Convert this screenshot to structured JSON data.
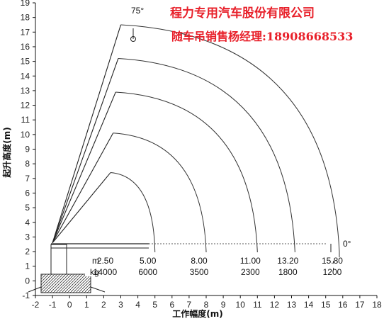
{
  "banner": {
    "company": "程力专用汽车股份有限公司",
    "contact": "随车吊销售杨经理:18908668533"
  },
  "chart_data": {
    "type": "load-chart",
    "xlabel": "工作幅度(m)",
    "ylabel": "起升高度(m)",
    "xlim": [
      -2,
      18
    ],
    "ylim": [
      -1,
      19
    ],
    "x_ticks": [
      -2,
      -1,
      0,
      1,
      2,
      3,
      4,
      5,
      6,
      7,
      8,
      9,
      10,
      11,
      12,
      13,
      14,
      15,
      16,
      17,
      18
    ],
    "y_ticks": [
      -1,
      0,
      1,
      2,
      3,
      4,
      5,
      6,
      7,
      8,
      9,
      10,
      11,
      12,
      13,
      14,
      15,
      16,
      17,
      18,
      19
    ],
    "angle_max_label": "75°",
    "angle_min_label": "0°",
    "table": {
      "radius_unit": "m",
      "load_unit": "kg",
      "radius": [
        "2.50",
        "5.00",
        "8.00",
        "11.00",
        "13.20",
        "15.80"
      ],
      "load": [
        "14000",
        "6000",
        "3500",
        "2300",
        "1800",
        "1200"
      ]
    },
    "envelopes": [
      {
        "radius": 5.0,
        "top_height": 7.4
      },
      {
        "radius": 8.0,
        "top_height": 10.1
      },
      {
        "radius": 11.0,
        "top_height": 12.9
      },
      {
        "radius": 13.2,
        "top_height": 15.2
      },
      {
        "radius": 15.8,
        "top_height": 17.5
      }
    ],
    "boom_pivot": {
      "x": -1.0,
      "y": 2.6
    }
  }
}
